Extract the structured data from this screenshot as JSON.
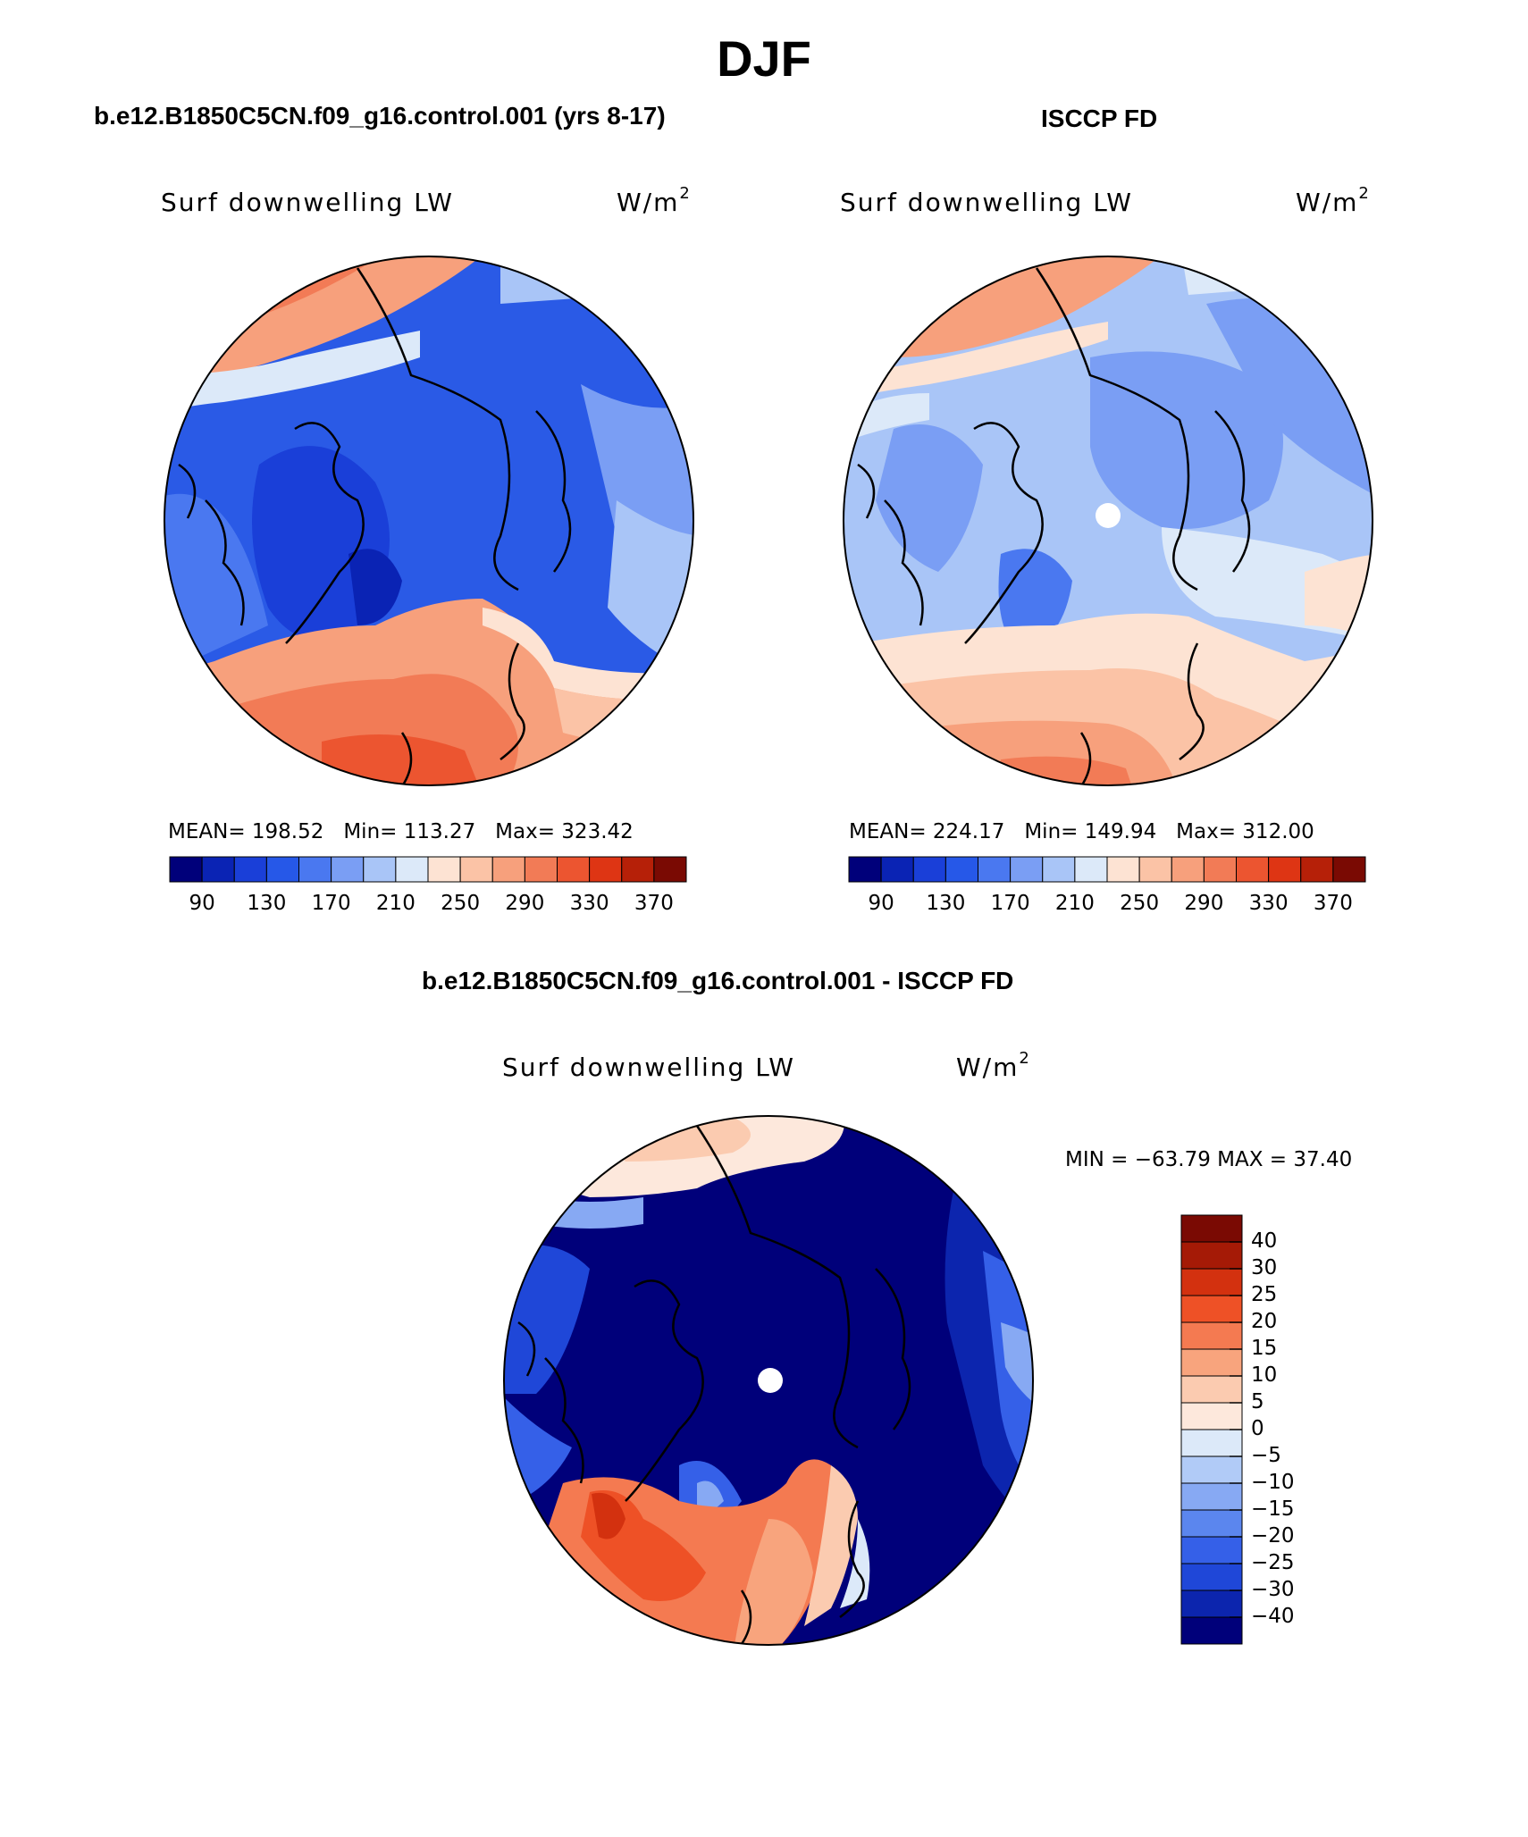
{
  "title": "DJF",
  "panels": [
    {
      "id": "model",
      "header": "b.e12.B1850C5CN.f09_g16.control.001 (yrs 8-17)",
      "variable": "Surf downwelling LW",
      "units": "W/m",
      "units_exp": "2",
      "stats": {
        "mean_label": "MEAN=",
        "mean": "198.52",
        "min_label": "Min=",
        "min": "113.27",
        "max_label": "Max=",
        "max": "323.42"
      }
    },
    {
      "id": "obs",
      "header": "ISCCP FD",
      "variable": "Surf downwelling LW",
      "units": "W/m",
      "units_exp": "2",
      "stats": {
        "mean_label": "MEAN=",
        "mean": "224.17",
        "min_label": "Min=",
        "min": "149.94",
        "max_label": "Max=",
        "max": "312.00"
      }
    },
    {
      "id": "diff",
      "header": "b.e12.B1850C5CN.f09_g16.control.001 - ISCCP FD",
      "variable": "Surf downwelling LW",
      "units": "W/m",
      "units_exp": "2",
      "stats": {
        "text": "MIN = −63.79 MAX =  37.40"
      }
    }
  ],
  "horizontal_colorbar": {
    "colors": [
      "#00007a",
      "#0a23b4",
      "#1a3fd8",
      "#2658e8",
      "#4a78f0",
      "#7a9ef4",
      "#a9c5f7",
      "#dce9f9",
      "#fde3d3",
      "#fbc3a6",
      "#f7a07c",
      "#f27b56",
      "#ec5530",
      "#de3514",
      "#b62008",
      "#7a0a03"
    ],
    "tick_labels": [
      "90",
      "130",
      "170",
      "210",
      "250",
      "290",
      "330",
      "370"
    ]
  },
  "vertical_colorbar": {
    "colors_top_to_bottom": [
      "#7a0a03",
      "#a51a06",
      "#d3310f",
      "#ee5126",
      "#f47a51",
      "#f8a47d",
      "#fbcbb0",
      "#fde8dc",
      "#dce9f9",
      "#b1cbf7",
      "#87a9f3",
      "#5b86ee",
      "#3560e8",
      "#1f47d8",
      "#0c25ae",
      "#00007a"
    ],
    "tick_labels": [
      "40",
      "30",
      "25",
      "20",
      "15",
      "10",
      "5",
      "0",
      "−5",
      "−10",
      "−15",
      "−20",
      "−25",
      "−30",
      "−40"
    ]
  }
}
